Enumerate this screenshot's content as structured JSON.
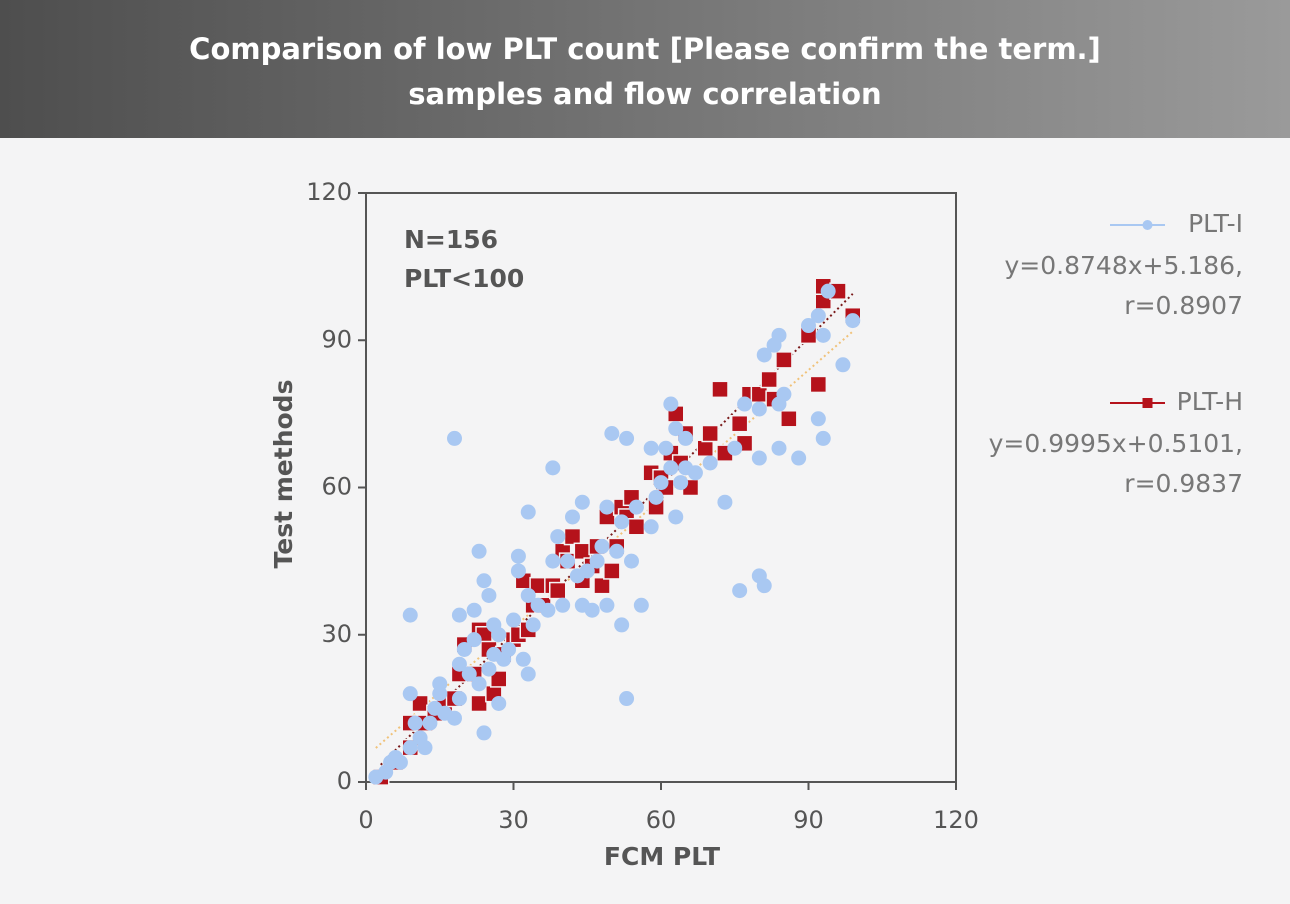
{
  "chart_data": {
    "type": "scatter",
    "title": [
      "Comparison of low PLT count [Please confirm the term.]",
      "samples and flow correlation"
    ],
    "xlabel": "FCM PLT",
    "ylabel": "Test methods",
    "annotations": [
      "N=156",
      "PLT<100"
    ],
    "xlim": [
      0,
      120
    ],
    "ylim": [
      0,
      120
    ],
    "xticks": [
      0,
      30,
      60,
      90,
      120
    ],
    "yticks": [
      0,
      30,
      60,
      90,
      120
    ],
    "series": [
      {
        "name": "PLT-H",
        "color": "#b5121b",
        "marker": "square",
        "fit_label": "y=0.9995x+0.5101,",
        "r_label": "r=0.9837",
        "fit": {
          "slope": 0.9995,
          "intercept": 0.5101
        },
        "x": [
          3,
          6,
          9,
          9,
          11,
          12,
          14,
          16,
          18,
          19,
          20,
          22,
          23,
          23,
          24,
          25,
          26,
          27,
          28,
          30,
          31,
          32,
          33,
          34,
          35,
          36,
          38,
          39,
          40,
          41,
          42,
          44,
          44,
          46,
          47,
          48,
          49,
          50,
          51,
          52,
          53,
          54,
          55,
          58,
          59,
          60,
          61,
          62,
          63,
          64,
          65,
          66,
          69,
          70,
          72,
          73,
          76,
          77,
          78,
          80,
          82,
          83,
          85,
          86,
          90,
          92,
          93,
          93,
          96,
          99
        ],
        "values": [
          1,
          4,
          7,
          12,
          16,
          12,
          14,
          16,
          17,
          22,
          28,
          22,
          31,
          16,
          30,
          27,
          18,
          21,
          26,
          29,
          30,
          41,
          31,
          36,
          40,
          36,
          40,
          39,
          47,
          45,
          50,
          41,
          47,
          44,
          48,
          40,
          54,
          43,
          48,
          56,
          54,
          58,
          52,
          63,
          56,
          62,
          60,
          67,
          75,
          65,
          71,
          60,
          68,
          71,
          80,
          67,
          73,
          69,
          79,
          79,
          82,
          78,
          86,
          74,
          91,
          81,
          98,
          101,
          100,
          95
        ]
      },
      {
        "name": "PLT-I",
        "color": "#a9c8f2",
        "marker": "circle",
        "fit_label": "y=0.8748x+5.186,",
        "r_label": "r=0.8907",
        "fit": {
          "slope": 0.8748,
          "intercept": 5.186
        },
        "x": [
          2,
          4,
          5,
          6,
          7,
          9,
          9,
          9,
          10,
          11,
          12,
          13,
          14,
          15,
          15,
          16,
          18,
          18,
          19,
          19,
          19,
          20,
          21,
          22,
          22,
          23,
          23,
          24,
          24,
          25,
          25,
          26,
          26,
          27,
          27,
          28,
          29,
          30,
          31,
          31,
          32,
          33,
          33,
          33,
          34,
          35,
          37,
          38,
          38,
          39,
          40,
          41,
          42,
          43,
          44,
          44,
          45,
          46,
          47,
          48,
          49,
          49,
          50,
          51,
          52,
          52,
          53,
          53,
          54,
          55,
          56,
          58,
          58,
          59,
          60,
          61,
          62,
          62,
          63,
          63,
          64,
          65,
          65,
          67,
          70,
          73,
          75,
          76,
          77,
          80,
          80,
          80,
          81,
          81,
          83,
          84,
          84,
          84,
          85,
          88,
          90,
          92,
          93,
          92,
          93,
          94,
          97,
          99
        ],
        "values": [
          1,
          2,
          4,
          5,
          4,
          7,
          18,
          34,
          12,
          9,
          7,
          12,
          15,
          18,
          20,
          14,
          13,
          70,
          17,
          24,
          34,
          27,
          22,
          29,
          35,
          20,
          47,
          41,
          10,
          38,
          23,
          26,
          32,
          16,
          30,
          25,
          27,
          33,
          46,
          43,
          25,
          22,
          38,
          55,
          32,
          36,
          35,
          45,
          64,
          50,
          36,
          45,
          54,
          42,
          57,
          36,
          43,
          35,
          45,
          48,
          56,
          36,
          71,
          47,
          32,
          53,
          70,
          17,
          45,
          56,
          36,
          52,
          68,
          58,
          61,
          68,
          77,
          64,
          54,
          72,
          61,
          70,
          64,
          63,
          65,
          57,
          68,
          39,
          77,
          76,
          66,
          42,
          40,
          87,
          89,
          91,
          77,
          68,
          79,
          66,
          93,
          74,
          70,
          95,
          91,
          100,
          85,
          94
        ]
      }
    ]
  }
}
